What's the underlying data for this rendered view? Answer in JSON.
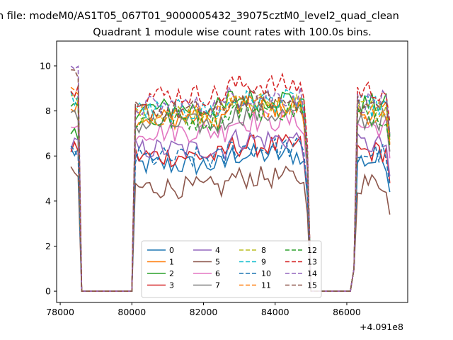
{
  "chart_data": {
    "type": "line",
    "title_line1": "n file: modeM0/AS1T05_067T01_9000005432_39075cztM0_level2_quad_clean",
    "title_line2": "Quadrant 1 module wise count rates with 100.0s bins.",
    "xlabel": "",
    "ylabel": "",
    "x_offset_label": "+4.091e8",
    "xlim": [
      77900,
      87700
    ],
    "ylim": [
      -0.5,
      11.1
    ],
    "xticks": [
      78000,
      80000,
      82000,
      84000,
      86000
    ],
    "yticks": [
      0,
      2,
      4,
      6,
      8,
      10
    ],
    "legend_position": "lower center",
    "legend_columns": 4,
    "series": [
      {
        "name": "0",
        "color": "#1f77b4",
        "dash": "solid",
        "base": 5.6,
        "pre": 6.2
      },
      {
        "name": "1",
        "color": "#ff7f0e",
        "dash": "solid",
        "base": 7.7,
        "pre": 8.3
      },
      {
        "name": "2",
        "color": "#2ca02c",
        "dash": "solid",
        "base": 8.1,
        "pre": 6.9
      },
      {
        "name": "3",
        "color": "#d62728",
        "dash": "solid",
        "base": 6.0,
        "pre": 6.4
      },
      {
        "name": "4",
        "color": "#9467bd",
        "dash": "solid",
        "base": 6.3,
        "pre": 6.5
      },
      {
        "name": "5",
        "color": "#8c564b",
        "dash": "solid",
        "base": 4.6,
        "pre": 5.1
      },
      {
        "name": "6",
        "color": "#e377c2",
        "dash": "solid",
        "base": 7.1,
        "pre": 7.2
      },
      {
        "name": "7",
        "color": "#7f7f7f",
        "dash": "solid",
        "base": 7.4,
        "pre": 7.7
      },
      {
        "name": "8",
        "color": "#bcbd22",
        "dash": "dashed",
        "base": 7.9,
        "pre": 8.4
      },
      {
        "name": "9",
        "color": "#17becf",
        "dash": "dashed",
        "base": 8.0,
        "pre": 8.6
      },
      {
        "name": "10",
        "color": "#1f77b4",
        "dash": "dashed",
        "base": 5.9,
        "pre": 6.1
      },
      {
        "name": "11",
        "color": "#ff7f0e",
        "dash": "dashed",
        "base": 7.8,
        "pre": 8.7
      },
      {
        "name": "12",
        "color": "#2ca02c",
        "dash": "dashed",
        "base": 7.6,
        "pre": 8.2
      },
      {
        "name": "13",
        "color": "#d62728",
        "dash": "dashed",
        "base": 8.7,
        "pre": 8.9
      },
      {
        "name": "14",
        "color": "#9467bd",
        "dash": "dashed",
        "base": 8.2,
        "pre": 9.6
      },
      {
        "name": "15",
        "color": "#8c564b",
        "dash": "dashed",
        "base": 8.0,
        "pre": 9.4
      }
    ]
  }
}
